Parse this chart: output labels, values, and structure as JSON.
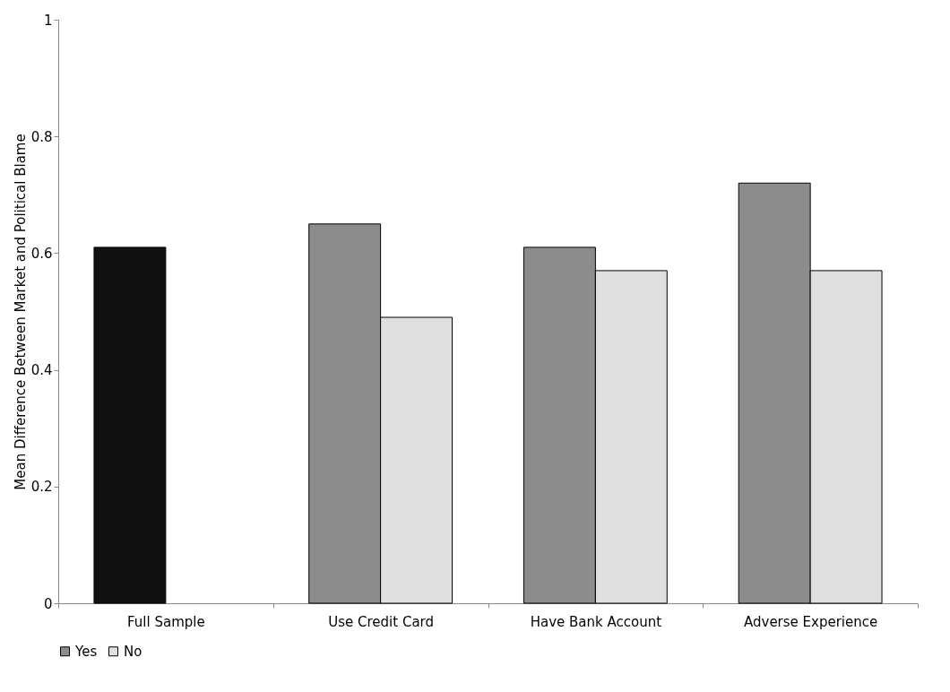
{
  "chart_data": {
    "type": "bar",
    "ylabel": "Mean Difference Between Market and Political Blame",
    "categories": [
      "Full Sample",
      "Use Credit Card",
      "Have Bank Account",
      "Adverse Experience"
    ],
    "series": [
      {
        "name": "Yes",
        "color": "#8c8c8c",
        "values": [
          0.61,
          0.65,
          0.61,
          0.72
        ],
        "colors": [
          "#111111",
          "#8c8c8c",
          "#8c8c8c",
          "#8c8c8c"
        ]
      },
      {
        "name": "No",
        "color": "#e0e0e0",
        "values": [
          null,
          0.49,
          0.57,
          0.57
        ]
      }
    ],
    "ylim": [
      0,
      1
    ],
    "yticks": [
      0,
      0.2,
      0.4,
      0.6,
      0.8,
      1
    ],
    "grid": false,
    "legend": "bottom"
  }
}
